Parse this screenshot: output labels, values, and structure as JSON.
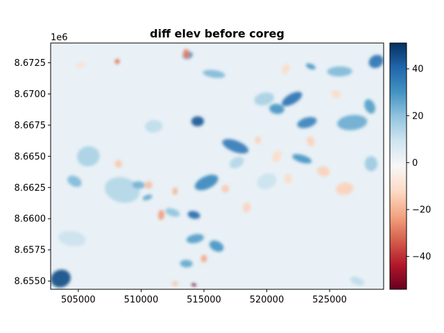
{
  "chart_data": {
    "type": "heatmap",
    "title": "diff elev before coreg",
    "xlabel": "",
    "ylabel": "",
    "x_ticks": [
      505000,
      510000,
      515000,
      520000,
      525000
    ],
    "x_tick_labels": [
      "505000",
      "510000",
      "515000",
      "520000",
      "525000"
    ],
    "xlim": [
      502800,
      529300
    ],
    "y_ticks": [
      8.655,
      8.6575,
      8.66,
      8.6625,
      8.665,
      8.6675,
      8.67,
      8.6725
    ],
    "y_tick_labels": [
      "8.6550",
      "8.6575",
      "8.6600",
      "8.6625",
      "8.6650",
      "8.6675",
      "8.6700",
      "8.6725"
    ],
    "ylim": [
      8.65434,
      8.67408
    ],
    "y_offset_text": "1e6",
    "colormap": "RdBu",
    "colorbar": {
      "ticks": [
        -40,
        -20,
        0,
        20,
        40
      ],
      "tick_labels": [
        "−40",
        "−20",
        "0",
        "20",
        "40"
      ],
      "vmin": -54,
      "vmax": 51
    },
    "blobs": [
      {
        "x": 522000,
        "y": 8.6696,
        "rx": 900,
        "ry": 0.0004,
        "value": 38
      },
      {
        "x": 520800,
        "y": 8.6688,
        "rx": 600,
        "ry": 0.0004,
        "value": 30
      },
      {
        "x": 523200,
        "y": 8.6677,
        "rx": 800,
        "ry": 0.0004,
        "value": 34
      },
      {
        "x": 517500,
        "y": 8.6658,
        "rx": 1100,
        "ry": 0.00045,
        "value": 36
      },
      {
        "x": 514500,
        "y": 8.6678,
        "rx": 500,
        "ry": 0.0004,
        "value": 44
      },
      {
        "x": 515200,
        "y": 8.6629,
        "rx": 1000,
        "ry": 0.0005,
        "value": 33
      },
      {
        "x": 514200,
        "y": 8.6603,
        "rx": 500,
        "ry": 0.0003,
        "value": 40
      },
      {
        "x": 514300,
        "y": 8.6584,
        "rx": 700,
        "ry": 0.00035,
        "value": 28
      },
      {
        "x": 516000,
        "y": 8.6578,
        "rx": 600,
        "ry": 0.0004,
        "value": 30
      },
      {
        "x": 513600,
        "y": 8.6564,
        "rx": 500,
        "ry": 0.0003,
        "value": 26
      },
      {
        "x": 503600,
        "y": 8.6552,
        "rx": 800,
        "ry": 0.0007,
        "value": 46
      },
      {
        "x": 522800,
        "y": 8.6648,
        "rx": 800,
        "ry": 0.0003,
        "value": 30
      },
      {
        "x": 526800,
        "y": 8.6677,
        "rx": 1200,
        "ry": 0.0006,
        "value": 25
      },
      {
        "x": 528700,
        "y": 8.6726,
        "rx": 600,
        "ry": 0.0005,
        "value": 38
      },
      {
        "x": 515800,
        "y": 8.6716,
        "rx": 900,
        "ry": 0.0003,
        "value": 22
      },
      {
        "x": 513700,
        "y": 8.6731,
        "rx": 400,
        "ry": 0.0003,
        "value": 32
      },
      {
        "x": 523500,
        "y": 8.6722,
        "rx": 400,
        "ry": 0.0002,
        "value": 30
      },
      {
        "x": 525800,
        "y": 8.6718,
        "rx": 1000,
        "ry": 0.0004,
        "value": 22
      },
      {
        "x": 528200,
        "y": 8.669,
        "rx": 400,
        "ry": 0.0006,
        "value": 28
      },
      {
        "x": 508500,
        "y": 8.6623,
        "rx": 1400,
        "ry": 0.001,
        "value": 14
      },
      {
        "x": 505800,
        "y": 8.665,
        "rx": 900,
        "ry": 0.0008,
        "value": 16
      },
      {
        "x": 504700,
        "y": 8.663,
        "rx": 600,
        "ry": 0.0004,
        "value": 22
      },
      {
        "x": 509800,
        "y": 8.6627,
        "rx": 500,
        "ry": 0.0003,
        "value": 24
      },
      {
        "x": 510500,
        "y": 8.6617,
        "rx": 400,
        "ry": 0.0002,
        "value": 26
      },
      {
        "x": 512500,
        "y": 8.6605,
        "rx": 600,
        "ry": 0.0003,
        "value": 20
      },
      {
        "x": 511000,
        "y": 8.6674,
        "rx": 700,
        "ry": 0.0005,
        "value": 12
      },
      {
        "x": 517600,
        "y": 8.6645,
        "rx": 600,
        "ry": 0.0004,
        "value": 14
      },
      {
        "x": 504500,
        "y": 8.6584,
        "rx": 1100,
        "ry": 0.0006,
        "value": 10
      },
      {
        "x": 519800,
        "y": 8.6696,
        "rx": 800,
        "ry": 0.0005,
        "value": 16
      },
      {
        "x": 527200,
        "y": 8.655,
        "rx": 600,
        "ry": 0.0003,
        "value": 12
      },
      {
        "x": 528300,
        "y": 8.6644,
        "rx": 500,
        "ry": 0.0006,
        "value": 18
      },
      {
        "x": 520000,
        "y": 8.663,
        "rx": 800,
        "ry": 0.0006,
        "value": 10
      },
      {
        "x": 514200,
        "y": 8.6547,
        "rx": 200,
        "ry": 0.0001,
        "value": -52
      },
      {
        "x": 513600,
        "y": 8.6732,
        "rx": 250,
        "ry": 0.0004,
        "value": -28
      },
      {
        "x": 508100,
        "y": 8.6726,
        "rx": 200,
        "ry": 0.0002,
        "value": -30
      },
      {
        "x": 511600,
        "y": 8.6603,
        "rx": 250,
        "ry": 0.0004,
        "value": -24
      },
      {
        "x": 510600,
        "y": 8.6627,
        "rx": 300,
        "ry": 0.0003,
        "value": -18
      },
      {
        "x": 508200,
        "y": 8.6644,
        "rx": 300,
        "ry": 0.0003,
        "value": -16
      },
      {
        "x": 515000,
        "y": 8.6568,
        "rx": 250,
        "ry": 0.0003,
        "value": -22
      },
      {
        "x": 516700,
        "y": 8.6624,
        "rx": 300,
        "ry": 0.0003,
        "value": -16
      },
      {
        "x": 518400,
        "y": 8.6609,
        "rx": 300,
        "ry": 0.0004,
        "value": -14
      },
      {
        "x": 519300,
        "y": 8.6663,
        "rx": 250,
        "ry": 0.0003,
        "value": -14
      },
      {
        "x": 520800,
        "y": 8.665,
        "rx": 300,
        "ry": 0.0005,
        "value": -12
      },
      {
        "x": 521700,
        "y": 8.6632,
        "rx": 300,
        "ry": 0.0004,
        "value": -12
      },
      {
        "x": 523500,
        "y": 8.6662,
        "rx": 300,
        "ry": 0.0004,
        "value": -14
      },
      {
        "x": 524500,
        "y": 8.6638,
        "rx": 500,
        "ry": 0.0004,
        "value": -14
      },
      {
        "x": 526200,
        "y": 8.6624,
        "rx": 700,
        "ry": 0.0005,
        "value": -14
      },
      {
        "x": 525500,
        "y": 8.67,
        "rx": 400,
        "ry": 0.0003,
        "value": -12
      },
      {
        "x": 512700,
        "y": 8.6622,
        "rx": 200,
        "ry": 0.0003,
        "value": -20
      },
      {
        "x": 505200,
        "y": 8.6723,
        "rx": 400,
        "ry": 0.0002,
        "value": -10
      },
      {
        "x": 521500,
        "y": 8.672,
        "rx": 300,
        "ry": 0.0004,
        "value": -12
      },
      {
        "x": 512700,
        "y": 8.6548,
        "rx": 250,
        "ry": 0.0002,
        "value": -16
      }
    ]
  }
}
